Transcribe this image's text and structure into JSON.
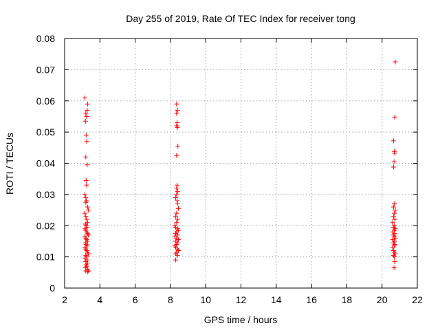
{
  "chart_data": {
    "type": "scatter",
    "title": "Day 255 of 2019, Rate Of TEC Index for receiver tong",
    "xlabel": "GPS time / hours",
    "ylabel": "ROTI / TECUs",
    "xlim": [
      2,
      22
    ],
    "ylim": [
      0,
      0.08
    ],
    "xticks": [
      2,
      4,
      6,
      8,
      10,
      12,
      14,
      16,
      18,
      20,
      22
    ],
    "yticks": [
      0,
      0.01,
      0.02,
      0.03,
      0.04,
      0.05,
      0.06,
      0.07,
      0.08
    ],
    "ytick_labels": [
      "0",
      "0.01",
      "0.02",
      "0.03",
      "0.04",
      "0.05",
      "0.06",
      "0.07",
      "0.08"
    ],
    "grid": true,
    "marker": "+",
    "color": "#ff0000",
    "series": [
      {
        "points": [
          [
            3.15,
            0.061
          ],
          [
            3.3,
            0.059
          ],
          [
            3.2,
            0.056
          ],
          [
            3.25,
            0.055
          ],
          [
            3.28,
            0.057
          ],
          [
            3.18,
            0.0535
          ],
          [
            3.22,
            0.049
          ],
          [
            3.25,
            0.047
          ],
          [
            3.2,
            0.042
          ],
          [
            3.28,
            0.0395
          ],
          [
            3.22,
            0.0345
          ],
          [
            3.25,
            0.033
          ],
          [
            3.15,
            0.03
          ],
          [
            3.2,
            0.029
          ],
          [
            3.25,
            0.028
          ],
          [
            3.2,
            0.0275
          ],
          [
            3.3,
            0.026
          ],
          [
            3.35,
            0.025
          ],
          [
            3.15,
            0.024
          ],
          [
            3.2,
            0.023
          ],
          [
            3.25,
            0.022
          ],
          [
            3.3,
            0.021
          ],
          [
            3.18,
            0.0205
          ],
          [
            3.22,
            0.02
          ],
          [
            3.28,
            0.0195
          ],
          [
            3.15,
            0.019
          ],
          [
            3.2,
            0.0185
          ],
          [
            3.25,
            0.018
          ],
          [
            3.3,
            0.0175
          ],
          [
            3.35,
            0.017
          ],
          [
            3.15,
            0.0165
          ],
          [
            3.2,
            0.016
          ],
          [
            3.25,
            0.0155
          ],
          [
            3.3,
            0.015
          ],
          [
            3.18,
            0.0145
          ],
          [
            3.22,
            0.014
          ],
          [
            3.28,
            0.0135
          ],
          [
            3.15,
            0.013
          ],
          [
            3.2,
            0.0125
          ],
          [
            3.25,
            0.012
          ],
          [
            3.3,
            0.0115
          ],
          [
            3.35,
            0.011
          ],
          [
            3.2,
            0.0105
          ],
          [
            3.25,
            0.01
          ],
          [
            3.15,
            0.0095
          ],
          [
            3.28,
            0.009
          ],
          [
            3.2,
            0.0085
          ],
          [
            3.3,
            0.008
          ],
          [
            3.22,
            0.0075
          ],
          [
            3.25,
            0.007
          ],
          [
            3.18,
            0.0065
          ],
          [
            3.3,
            0.006
          ],
          [
            3.2,
            0.0055
          ],
          [
            3.35,
            0.0055
          ],
          [
            3.3,
            0.0052
          ],
          [
            8.35,
            0.059
          ],
          [
            8.4,
            0.057
          ],
          [
            8.35,
            0.056
          ],
          [
            8.38,
            0.053
          ],
          [
            8.35,
            0.052
          ],
          [
            8.4,
            0.0515
          ],
          [
            8.42,
            0.0455
          ],
          [
            8.35,
            0.0425
          ],
          [
            8.38,
            0.033
          ],
          [
            8.35,
            0.032
          ],
          [
            8.4,
            0.031
          ],
          [
            8.35,
            0.03
          ],
          [
            8.3,
            0.029
          ],
          [
            8.38,
            0.028
          ],
          [
            8.4,
            0.027
          ],
          [
            8.45,
            0.0255
          ],
          [
            8.35,
            0.024
          ],
          [
            8.3,
            0.023
          ],
          [
            8.4,
            0.022
          ],
          [
            8.35,
            0.021
          ],
          [
            8.25,
            0.02
          ],
          [
            8.3,
            0.0195
          ],
          [
            8.4,
            0.019
          ],
          [
            8.45,
            0.0185
          ],
          [
            8.35,
            0.018
          ],
          [
            8.3,
            0.0175
          ],
          [
            8.4,
            0.017
          ],
          [
            8.25,
            0.0165
          ],
          [
            8.35,
            0.016
          ],
          [
            8.45,
            0.0155
          ],
          [
            8.3,
            0.015
          ],
          [
            8.4,
            0.0145
          ],
          [
            8.35,
            0.014
          ],
          [
            8.25,
            0.0135
          ],
          [
            8.3,
            0.013
          ],
          [
            8.4,
            0.0125
          ],
          [
            8.45,
            0.012
          ],
          [
            8.35,
            0.0115
          ],
          [
            8.3,
            0.011
          ],
          [
            8.4,
            0.0105
          ],
          [
            8.3,
            0.009
          ],
          [
            20.75,
            0.0725
          ],
          [
            20.72,
            0.0548
          ],
          [
            20.65,
            0.0472
          ],
          [
            20.7,
            0.0438
          ],
          [
            20.72,
            0.0432
          ],
          [
            20.68,
            0.0405
          ],
          [
            20.65,
            0.0388
          ],
          [
            20.7,
            0.027
          ],
          [
            20.65,
            0.026
          ],
          [
            20.75,
            0.025
          ],
          [
            20.7,
            0.024
          ],
          [
            20.65,
            0.023
          ],
          [
            20.72,
            0.022
          ],
          [
            20.6,
            0.021
          ],
          [
            20.7,
            0.02
          ],
          [
            20.65,
            0.0195
          ],
          [
            20.75,
            0.019
          ],
          [
            20.7,
            0.0185
          ],
          [
            20.6,
            0.018
          ],
          [
            20.72,
            0.0175
          ],
          [
            20.65,
            0.017
          ],
          [
            20.7,
            0.0165
          ],
          [
            20.75,
            0.016
          ],
          [
            20.6,
            0.0155
          ],
          [
            20.7,
            0.015
          ],
          [
            20.65,
            0.0145
          ],
          [
            20.72,
            0.014
          ],
          [
            20.7,
            0.0135
          ],
          [
            20.6,
            0.013
          ],
          [
            20.65,
            0.012
          ],
          [
            20.7,
            0.0115
          ],
          [
            20.75,
            0.011
          ],
          [
            20.65,
            0.0105
          ],
          [
            20.7,
            0.01
          ],
          [
            20.72,
            0.0085
          ],
          [
            20.68,
            0.0065
          ]
        ]
      }
    ]
  }
}
